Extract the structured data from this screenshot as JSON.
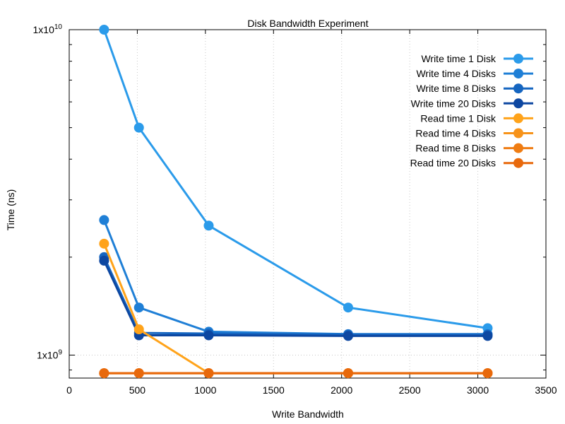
{
  "chart_data": {
    "type": "line",
    "title": "Disk Bandwidth Experiment",
    "xlabel": "Write Bandwidth",
    "ylabel": "Time (ns)",
    "xlim": [
      0,
      3500
    ],
    "ylim": [
      850000000,
      10000000000
    ],
    "y_scale": "log",
    "grid": true,
    "legend_position": "top-right",
    "x_ticks": [
      0,
      500,
      1000,
      1500,
      2000,
      2500,
      3000,
      3500
    ],
    "x_tick_labels": [
      "0",
      "500",
      "1000",
      "1500",
      "2000",
      "2500",
      "3000",
      "3500"
    ],
    "y_ticks": [
      {
        "value": 1000000000,
        "mantissa": "1x10",
        "exp": "9"
      },
      {
        "value": 10000000000,
        "mantissa": "1x10",
        "exp": "10"
      }
    ],
    "x": [
      256,
      512,
      1024,
      2048,
      3072
    ],
    "series": [
      {
        "name": "Write time 1 Disk",
        "color": "#2b9bea",
        "values": [
          10000000000,
          5000000000,
          2500000000,
          1400000000,
          1210000000
        ]
      },
      {
        "name": "Write time 4 Disks",
        "color": "#1f7fd6",
        "values": [
          2600000000,
          1400000000,
          1180000000,
          1160000000,
          1160000000
        ]
      },
      {
        "name": "Write time 8 Disks",
        "color": "#1565c0",
        "values": [
          2000000000,
          1170000000,
          1165000000,
          1155000000,
          1155000000
        ]
      },
      {
        "name": "Write time 20 Disks",
        "color": "#0d47a1",
        "values": [
          1950000000,
          1150000000,
          1150000000,
          1145000000,
          1145000000
        ]
      },
      {
        "name": "Read time 1 Disk",
        "color": "#ffa31a",
        "values": [
          2200000000,
          1200000000,
          880000000,
          880000000,
          880000000
        ]
      },
      {
        "name": "Read time 4 Disks",
        "color": "#f7931a",
        "values": [
          880000000,
          880000000,
          880000000,
          880000000,
          880000000
        ]
      },
      {
        "name": "Read time 8 Disks",
        "color": "#ef7c12",
        "values": [
          880000000,
          880000000,
          880000000,
          880000000,
          880000000
        ]
      },
      {
        "name": "Read time 20 Disks",
        "color": "#e8690c",
        "values": [
          880000000,
          880000000,
          880000000,
          880000000,
          880000000
        ]
      }
    ]
  }
}
